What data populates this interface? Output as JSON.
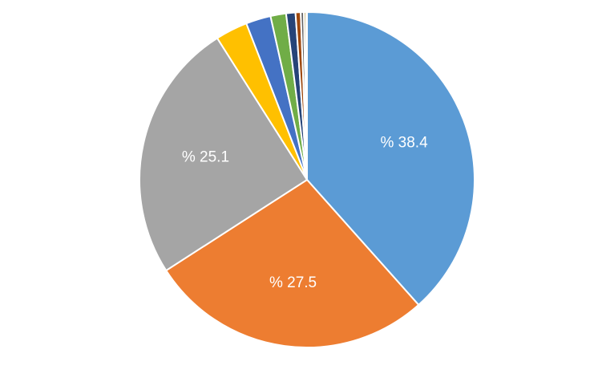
{
  "chart_data": {
    "type": "pie",
    "start_angle_deg": 0,
    "direction": "clockwise",
    "slices": [
      {
        "value": 38.4,
        "label": "% 38.4",
        "color": "#5B9BD5"
      },
      {
        "value": 27.5,
        "label": "% 27.5",
        "color": "#ED7D31"
      },
      {
        "value": 25.1,
        "label": "% 25.1",
        "color": "#A5A5A5"
      },
      {
        "value": 3.1,
        "label": "",
        "color": "#FFC000"
      },
      {
        "value": 2.4,
        "label": "",
        "color": "#4472C4"
      },
      {
        "value": 1.5,
        "label": "",
        "color": "#70AD47"
      },
      {
        "value": 0.9,
        "label": "",
        "color": "#264478"
      },
      {
        "value": 0.5,
        "label": "",
        "color": "#9E480E"
      },
      {
        "value": 0.3,
        "label": "",
        "color": "#636363"
      },
      {
        "value": 0.2,
        "label": "",
        "color": "#997300"
      },
      {
        "value": 0.1,
        "label": "",
        "color": "#255E91"
      }
    ]
  }
}
